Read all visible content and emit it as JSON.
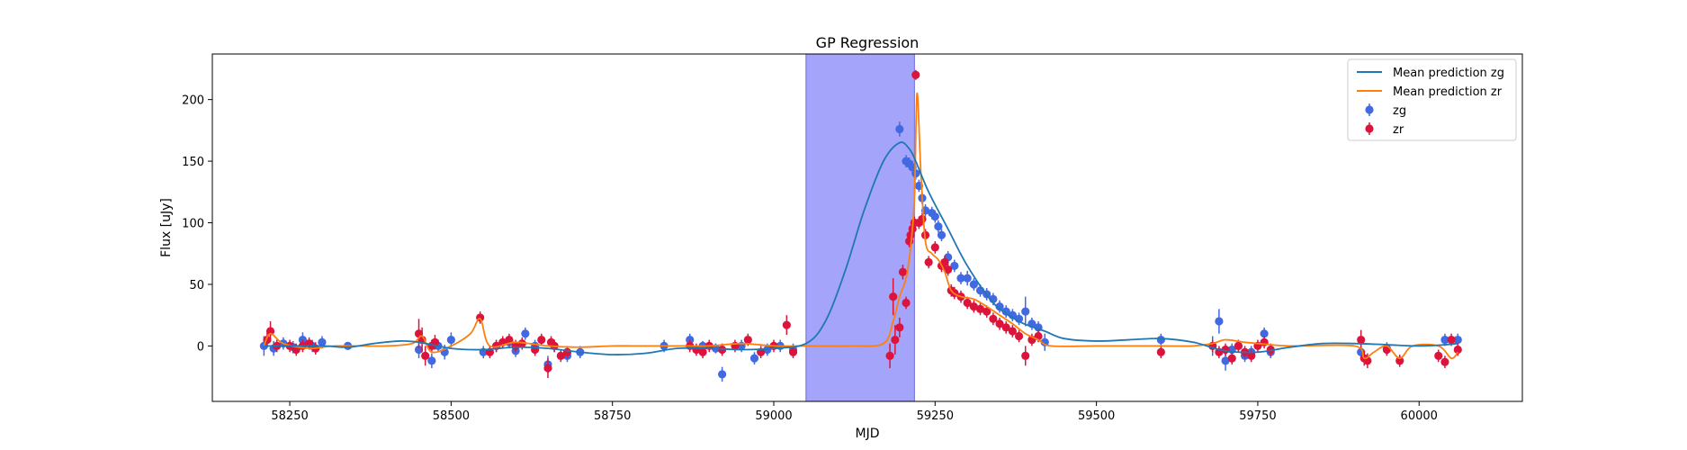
{
  "chart_data": {
    "type": "scatter",
    "title": "GP Regression",
    "xlabel": "MJD",
    "ylabel": "Flux [uJy]",
    "xlim": [
      58130,
      60160
    ],
    "ylim": [
      -45,
      237
    ],
    "xticks": [
      58250,
      58500,
      58750,
      59000,
      59250,
      59500,
      59750,
      60000
    ],
    "yticks": [
      0,
      50,
      100,
      150,
      200
    ],
    "grid": false,
    "legend_placement": "top-right",
    "shaded_region": {
      "x0": 59050,
      "x1": 59218,
      "color": "#a4a4fa"
    },
    "colors": {
      "zg_line": "#1f77b4",
      "zr_line": "#ff7f0e",
      "zg_points": "#4169e1",
      "zr_points": "#dc143c"
    },
    "series": [
      {
        "name": "Mean prediction zg",
        "kind": "line",
        "x": [
          58210,
          58300,
          58340,
          58380,
          58420,
          58450,
          58500,
          58550,
          58600,
          58650,
          58700,
          58750,
          58800,
          58850,
          58900,
          58950,
          59000,
          59050,
          59080,
          59110,
          59140,
          59170,
          59195,
          59210,
          59220,
          59240,
          59270,
          59300,
          59340,
          59380,
          59420,
          59450,
          59500,
          59550,
          59600,
          59650,
          59700,
          59750,
          59800,
          59850,
          59900,
          59950,
          60000,
          60040,
          60060
        ],
        "y": [
          0,
          0,
          -1,
          2,
          4,
          3,
          -2,
          -3,
          -1,
          -2,
          -5,
          -7,
          -6,
          -2,
          -2,
          -3,
          -2,
          2,
          20,
          60,
          110,
          150,
          165,
          160,
          150,
          125,
          95,
          65,
          35,
          20,
          12,
          6,
          4,
          5,
          6,
          3,
          -4,
          -5,
          -1,
          2,
          2,
          1,
          0,
          1,
          2
        ]
      },
      {
        "name": "Mean prediction zr",
        "kind": "line",
        "x": [
          58210,
          58220,
          58240,
          58280,
          58320,
          58400,
          58440,
          58455,
          58470,
          58500,
          58530,
          58545,
          58560,
          58600,
          58650,
          58700,
          58750,
          58800,
          58860,
          58900,
          58950,
          59000,
          59050,
          59120,
          59170,
          59185,
          59195,
          59205,
          59212,
          59218,
          59222,
          59228,
          59235,
          59245,
          59255,
          59265,
          59275,
          59290,
          59310,
          59330,
          59350,
          59370,
          59390,
          59410,
          59430,
          59500,
          59600,
          59650,
          59680,
          59700,
          59730,
          59750,
          59800,
          59900,
          59915,
          59930,
          59950,
          59970,
          59990,
          60030,
          60050,
          60060
        ],
        "y": [
          0,
          10,
          2,
          -2,
          0,
          0,
          2,
          8,
          -5,
          0,
          10,
          22,
          0,
          3,
          0,
          -1,
          0,
          0,
          0,
          0,
          2,
          0,
          0,
          0,
          2,
          20,
          40,
          55,
          80,
          120,
          205,
          140,
          85,
          75,
          70,
          60,
          45,
          40,
          38,
          32,
          25,
          18,
          10,
          5,
          0,
          0,
          0,
          0,
          2,
          5,
          3,
          2,
          0,
          0,
          -10,
          -5,
          0,
          -10,
          0,
          0,
          -10,
          -5
        ]
      },
      {
        "name": "zg",
        "kind": "errorbar",
        "x": [
          58210,
          58225,
          58240,
          58255,
          58270,
          58285,
          58300,
          58340,
          58450,
          58470,
          58480,
          58490,
          58500,
          58550,
          58570,
          58590,
          58600,
          58615,
          58630,
          58650,
          58660,
          58680,
          58700,
          58830,
          58870,
          58890,
          58910,
          58920,
          58950,
          58970,
          58990,
          59010,
          59030,
          59195,
          59205,
          59210,
          59215,
          59220,
          59225,
          59230,
          59235,
          59245,
          59250,
          59255,
          59260,
          59270,
          59280,
          59290,
          59300,
          59310,
          59320,
          59330,
          59340,
          59350,
          59360,
          59370,
          59380,
          59390,
          59400,
          59410,
          59420,
          59600,
          59680,
          59690,
          59700,
          59710,
          59720,
          59730,
          59740,
          59760,
          59770,
          59910,
          59950,
          60040,
          60060
        ],
        "y": [
          0,
          -2,
          2,
          -1,
          5,
          0,
          3,
          0,
          -3,
          -12,
          0,
          -5,
          5,
          -5,
          0,
          3,
          -4,
          10,
          0,
          -15,
          0,
          -8,
          -5,
          0,
          5,
          0,
          -2,
          -23,
          0,
          -10,
          -3,
          0,
          -3,
          176,
          150,
          148,
          145,
          140,
          130,
          120,
          110,
          108,
          105,
          97,
          90,
          72,
          65,
          55,
          55,
          50,
          45,
          42,
          38,
          32,
          28,
          25,
          22,
          28,
          18,
          15,
          3,
          5,
          0,
          20,
          -12,
          -3,
          0,
          -8,
          -5,
          10,
          -5,
          -5,
          -2,
          5,
          5
        ],
        "err": [
          8,
          6,
          5,
          5,
          6,
          5,
          5,
          3,
          7,
          6,
          5,
          6,
          6,
          5,
          5,
          5,
          5,
          5,
          5,
          7,
          5,
          5,
          5,
          5,
          5,
          4,
          4,
          6,
          5,
          5,
          5,
          5,
          5,
          6,
          5,
          5,
          5,
          5,
          5,
          5,
          5,
          5,
          5,
          5,
          5,
          5,
          5,
          5,
          6,
          5,
          5,
          5,
          5,
          5,
          5,
          5,
          5,
          12,
          5,
          5,
          7,
          5,
          8,
          10,
          8,
          5,
          5,
          5,
          5,
          5,
          5,
          5,
          5,
          5,
          5
        ]
      },
      {
        "name": "zr",
        "kind": "errorbar",
        "x": [
          58215,
          58220,
          58230,
          58250,
          58260,
          58270,
          58280,
          58290,
          58450,
          58455,
          58460,
          58470,
          58475,
          58545,
          58560,
          58570,
          58580,
          58590,
          58600,
          58610,
          58630,
          58640,
          58650,
          58655,
          58660,
          58670,
          58680,
          58870,
          58880,
          58890,
          58900,
          58920,
          58940,
          58960,
          58980,
          59000,
          59020,
          59030,
          59180,
          59185,
          59188,
          59195,
          59200,
          59205,
          59210,
          59212,
          59215,
          59218,
          59220,
          59225,
          59230,
          59235,
          59240,
          59250,
          59260,
          59265,
          59270,
          59275,
          59280,
          59290,
          59300,
          59310,
          59320,
          59330,
          59340,
          59350,
          59360,
          59370,
          59380,
          59390,
          59400,
          59410,
          59600,
          59680,
          59690,
          59700,
          59710,
          59720,
          59730,
          59740,
          59750,
          59760,
          59770,
          59910,
          59915,
          59920,
          59950,
          59970,
          60030,
          60040,
          60050,
          60060
        ],
        "y": [
          5,
          12,
          0,
          0,
          -3,
          0,
          2,
          -2,
          10,
          5,
          -8,
          0,
          3,
          23,
          -5,
          0,
          3,
          5,
          0,
          2,
          -3,
          5,
          -18,
          3,
          0,
          -8,
          -5,
          0,
          -3,
          -5,
          0,
          -3,
          0,
          5,
          -5,
          0,
          17,
          -5,
          -8,
          40,
          5,
          15,
          60,
          35,
          85,
          90,
          95,
          100,
          220,
          100,
          103,
          90,
          68,
          80,
          65,
          68,
          62,
          45,
          43,
          40,
          35,
          32,
          30,
          28,
          22,
          18,
          15,
          12,
          8,
          -8,
          5,
          8,
          -5,
          0,
          -5,
          -3,
          -10,
          0,
          -5,
          -8,
          0,
          3,
          -3,
          5,
          -10,
          -12,
          -3,
          -12,
          -8,
          -13,
          5,
          -3
        ],
        "err": [
          6,
          8,
          5,
          5,
          5,
          5,
          5,
          5,
          12,
          10,
          8,
          5,
          6,
          5,
          5,
          5,
          5,
          5,
          5,
          5,
          5,
          5,
          8,
          5,
          5,
          5,
          5,
          5,
          5,
          5,
          5,
          5,
          5,
          5,
          5,
          5,
          8,
          5,
          10,
          15,
          12,
          8,
          6,
          5,
          5,
          5,
          5,
          5,
          4,
          5,
          5,
          5,
          5,
          5,
          5,
          5,
          5,
          5,
          5,
          5,
          5,
          5,
          5,
          5,
          5,
          5,
          5,
          5,
          5,
          8,
          5,
          5,
          5,
          5,
          5,
          5,
          5,
          5,
          5,
          5,
          5,
          5,
          5,
          8,
          6,
          6,
          5,
          5,
          5,
          5,
          5,
          5
        ]
      }
    ]
  }
}
